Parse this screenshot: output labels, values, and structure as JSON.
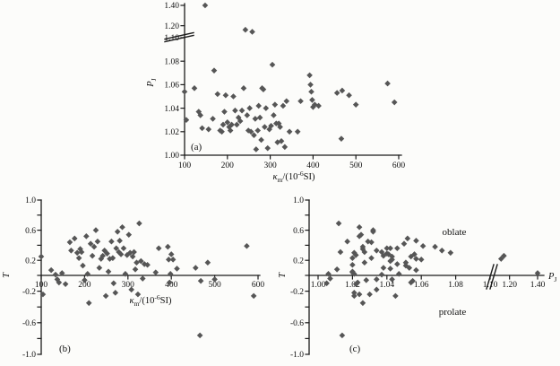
{
  "figure": {
    "background": "#fcfcfa",
    "point_color": "#565656",
    "axis_color": "#1b1b1b",
    "text_color": "#101010"
  },
  "labels": {
    "panel_a": "(a)",
    "panel_b": "(b)",
    "panel_c": "(c)",
    "oblate": "oblate",
    "prolate": "prolate"
  },
  "chart_data": {
    "type": "scatter",
    "marker": "diamond",
    "label_parts": {
      "kappa": [
        [
          "κ",
          "it"
        ],
        [
          "m",
          "sub"
        ],
        [
          "/(10",
          "rm"
        ],
        [
          "-6",
          "sup"
        ],
        [
          "SI)",
          "rm"
        ]
      ],
      "PJ": [
        [
          "P",
          "it"
        ],
        [
          "J",
          "sub"
        ]
      ],
      "T": [
        [
          "T",
          "it"
        ]
      ]
    },
    "specimens": {
      "fields": [
        "km_10e-6SI",
        "PJ",
        "T"
      ],
      "rows": [
        [
          100,
          1.054,
          0.25
        ],
        [
          104,
          1.03,
          -0.24
        ],
        [
          123,
          1.057,
          0.07
        ],
        [
          133,
          1.037,
          0.01
        ],
        [
          137,
          1.034,
          -0.05
        ],
        [
          141,
          1.023,
          -0.09
        ],
        [
          148,
          1.4,
          0.03
        ],
        [
          156,
          1.022,
          -0.11
        ],
        [
          166,
          1.031,
          0.44
        ],
        [
          169,
          1.072,
          0.33
        ],
        [
          177,
          1.052,
          0.49
        ],
        [
          183,
          1.021,
          0.3
        ],
        [
          187,
          1.02,
          0.23
        ],
        [
          190,
          1.026,
          0.35
        ],
        [
          193,
          1.037,
          0.31
        ],
        [
          196,
          1.051,
          0.13
        ],
        [
          200,
          1.028,
          -0.06
        ],
        [
          204,
          1.024,
          0.52
        ],
        [
          207,
          1.021,
          0.02
        ],
        [
          210,
          1.026,
          -0.35
        ],
        [
          214,
          1.05,
          0.42
        ],
        [
          218,
          1.038,
          0.26
        ],
        [
          222,
          1.026,
          0.38
        ],
        [
          226,
          1.032,
          0.6
        ],
        [
          230,
          1.029,
          0.45
        ],
        [
          234,
          1.038,
          0.1
        ],
        [
          238,
          1.057,
          0.22
        ],
        [
          242,
          1.16,
          0.26
        ],
        [
          246,
          1.034,
          0.33
        ],
        [
          249,
          1.021,
          -0.26
        ],
        [
          252,
          1.04,
          0.29
        ],
        [
          255,
          1.02,
          0.05
        ],
        [
          258,
          1.14,
          0.22
        ],
        [
          262,
          1.017,
          0.45
        ],
        [
          265,
          1.031,
          0.23
        ],
        [
          267,
          1.005,
          -0.1
        ],
        [
          271,
          1.021,
          -0.22
        ],
        [
          273,
          1.042,
          0.36
        ],
        [
          276,
          1.032,
          0.58
        ],
        [
          279,
          1.013,
          0.31
        ],
        [
          281,
          1.057,
          0.46
        ],
        [
          284,
          1.056,
          0.28
        ],
        [
          287,
          1.024,
          0.64
        ],
        [
          290,
          1.04,
          0.36
        ],
        [
          294,
          1.006,
          0.02
        ],
        [
          298,
          1.022,
          0.27
        ],
        [
          302,
          1.025,
          0.54
        ],
        [
          305,
          1.077,
          0.3
        ],
        [
          308,
          1.034,
          -0.18
        ],
        [
          311,
          1.043,
          0.25
        ],
        [
          314,
          1.027,
          0.31
        ],
        [
          317,
          1.011,
          0.08
        ],
        [
          320,
          1.027,
          0.17
        ],
        [
          323,
          1.024,
          -0.24
        ],
        [
          326,
          1.012,
          0.69
        ],
        [
          330,
          1.042,
          0.19
        ],
        [
          334,
          1.007,
          -0.04
        ],
        [
          338,
          1.046,
          0.15
        ],
        [
          345,
          1.02,
          0.14
        ],
        [
          364,
          1.02,
          0.04
        ],
        [
          371,
          1.046,
          0.36
        ],
        [
          392,
          1.068,
          0.38
        ],
        [
          394,
          1.06,
          0.21
        ],
        [
          396,
          1.054,
          -0.09
        ],
        [
          398,
          1.047,
          0.02
        ],
        [
          400,
          1.041,
          0.28
        ],
        [
          404,
          1.043,
          0.21
        ],
        [
          413,
          1.042,
          0.09
        ],
        [
          456,
          1.053,
          0.1
        ],
        [
          466,
          1.014,
          -0.76
        ],
        [
          468,
          1.055,
          -0.07
        ],
        [
          484,
          1.051,
          0.17
        ],
        [
          500,
          1.043,
          -0.05
        ],
        [
          574,
          1.061,
          0.39
        ],
        [
          590,
          1.045,
          -0.26
        ]
      ]
    },
    "panels": [
      {
        "id": "a",
        "letter": "(a)",
        "x_field": "km_10e-6SI",
        "y_field": "PJ",
        "xlabel": "κm/(10-6SI)",
        "ylabel": "PJ",
        "xlabel_parts": "kappa",
        "ylabel_parts": "PJ",
        "xlim": [
          100,
          610
        ],
        "x_ticks": [
          [
            100,
            "100"
          ],
          [
            200,
            "200"
          ],
          [
            300,
            "300"
          ],
          [
            400,
            "400"
          ],
          [
            500,
            "500"
          ],
          [
            600,
            "600"
          ]
        ],
        "y_segments": [
          [
            1.0,
            1.1
          ],
          [
            1.1,
            1.4
          ]
        ],
        "y_break": true,
        "y_ticks": [
          [
            1.0,
            "1.00"
          ],
          [
            1.02,
            "1.02"
          ],
          [
            1.04,
            "1.04"
          ],
          [
            1.06,
            "1.06"
          ],
          [
            1.08,
            "1.08"
          ],
          [
            1.1,
            "1.10"
          ],
          [
            1.2,
            "1.20"
          ],
          [
            1.4,
            "1.40"
          ]
        ]
      },
      {
        "id": "b",
        "letter": "(b)",
        "x_field": "km_10e-6SI",
        "y_field": "T",
        "xlabel": "κm/(10-6SI)",
        "ylabel": "T",
        "xlabel_parts": "kappa",
        "ylabel_parts": "T",
        "xlim": [
          100,
          610
        ],
        "x_axis_at": 0,
        "x_ticks": [
          [
            100,
            "100"
          ],
          [
            200,
            "200"
          ],
          [
            300,
            "300"
          ],
          [
            400,
            "400"
          ],
          [
            500,
            "500"
          ],
          [
            600,
            "600"
          ]
        ],
        "ylim": [
          -1.0,
          1.0
        ],
        "y_ticks": [
          [
            1.0,
            "1.0"
          ],
          [
            0.8,
            ""
          ],
          [
            0.6,
            "0.6"
          ],
          [
            0.4,
            ""
          ],
          [
            0.2,
            "0.2"
          ],
          [
            0.0,
            ""
          ],
          [
            -0.2,
            "-0.2"
          ],
          [
            -0.4,
            ""
          ],
          [
            -0.6,
            "-0.6"
          ],
          [
            -0.8,
            ""
          ],
          [
            -1.0,
            "-1.0"
          ]
        ]
      },
      {
        "id": "c",
        "letter": "(c)",
        "x_field": "PJ",
        "y_field": "T",
        "xlabel": "PJ",
        "ylabel": "T",
        "xlabel_parts": "PJ",
        "ylabel_parts": "T",
        "x_segments": [
          [
            1.0,
            1.1
          ],
          [
            1.1,
            1.4
          ]
        ],
        "x_break": true,
        "x_axis_at": 0,
        "x_ticks": [
          [
            1.0,
            "1.00"
          ],
          [
            1.02,
            "1.02"
          ],
          [
            1.04,
            "1.04"
          ],
          [
            1.06,
            "1.06"
          ],
          [
            1.08,
            "1.08"
          ],
          [
            1.1,
            "1.10"
          ],
          [
            1.2,
            "1.20"
          ],
          [
            1.4,
            "1.40"
          ]
        ],
        "ylim": [
          -1.0,
          1.0
        ],
        "y_ticks": [
          [
            1.0,
            "1.0"
          ],
          [
            0.8,
            ""
          ],
          [
            0.6,
            "0.6"
          ],
          [
            0.4,
            ""
          ],
          [
            0.2,
            "0.2"
          ],
          [
            0.0,
            ""
          ],
          [
            -0.2,
            "-0.2"
          ],
          [
            -0.4,
            ""
          ],
          [
            -0.6,
            "-0.6"
          ],
          [
            -0.8,
            ""
          ],
          [
            -1.0,
            "-1.0"
          ]
        ],
        "annotations": [
          {
            "name": "oblate",
            "text": "oblate"
          },
          {
            "name": "prolate",
            "text": "prolate"
          }
        ]
      }
    ]
  }
}
